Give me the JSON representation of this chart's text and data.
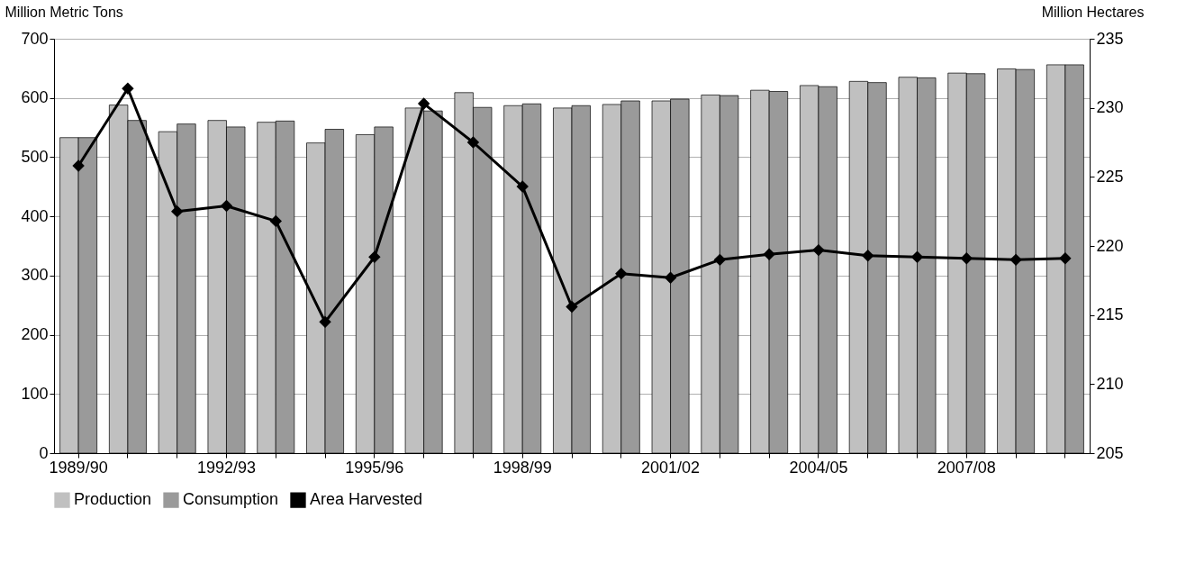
{
  "chart_data": {
    "type": "bar",
    "categories": [
      "1989/90",
      null,
      null,
      "1992/93",
      null,
      null,
      "1995/96",
      null,
      null,
      "1998/99",
      null,
      null,
      "2001/02",
      null,
      null,
      "2004/05",
      null,
      null,
      "2007/08",
      null,
      null
    ],
    "series": [
      {
        "name": "Production",
        "color": "#c0c0c0",
        "values": [
          533,
          588,
          543,
          562,
          559,
          524,
          538,
          583,
          609,
          587,
          583,
          589,
          595,
          605,
          613,
          621,
          628,
          635,
          642,
          649,
          656
        ]
      },
      {
        "name": "Consumption",
        "color": "#9a9a9a",
        "values": [
          533,
          562,
          556,
          551,
          561,
          547,
          551,
          578,
          584,
          590,
          587,
          595,
          598,
          604,
          611,
          619,
          626,
          634,
          641,
          648,
          656
        ]
      },
      {
        "name": "Area Harvested",
        "type": "line",
        "axis": "y2",
        "color": "#000000",
        "marker": "diamond",
        "values": [
          225.8,
          231.4,
          222.5,
          222.9,
          221.8,
          214.5,
          219.2,
          230.3,
          227.5,
          224.3,
          215.6,
          218.0,
          217.7,
          219.0,
          219.4,
          219.7,
          219.3,
          219.2,
          219.1,
          219.0,
          219.1
        ]
      }
    ],
    "ylabel": "Million Metric Tons",
    "y2label": "Million Hectares",
    "ylim": [
      0,
      700
    ],
    "yticks": [
      0,
      100,
      200,
      300,
      400,
      500,
      600,
      700
    ],
    "y2lim": [
      205,
      235
    ],
    "y2ticks": [
      205,
      210,
      215,
      220,
      225,
      230,
      235
    ],
    "grid": "y",
    "legend": "bottom"
  }
}
